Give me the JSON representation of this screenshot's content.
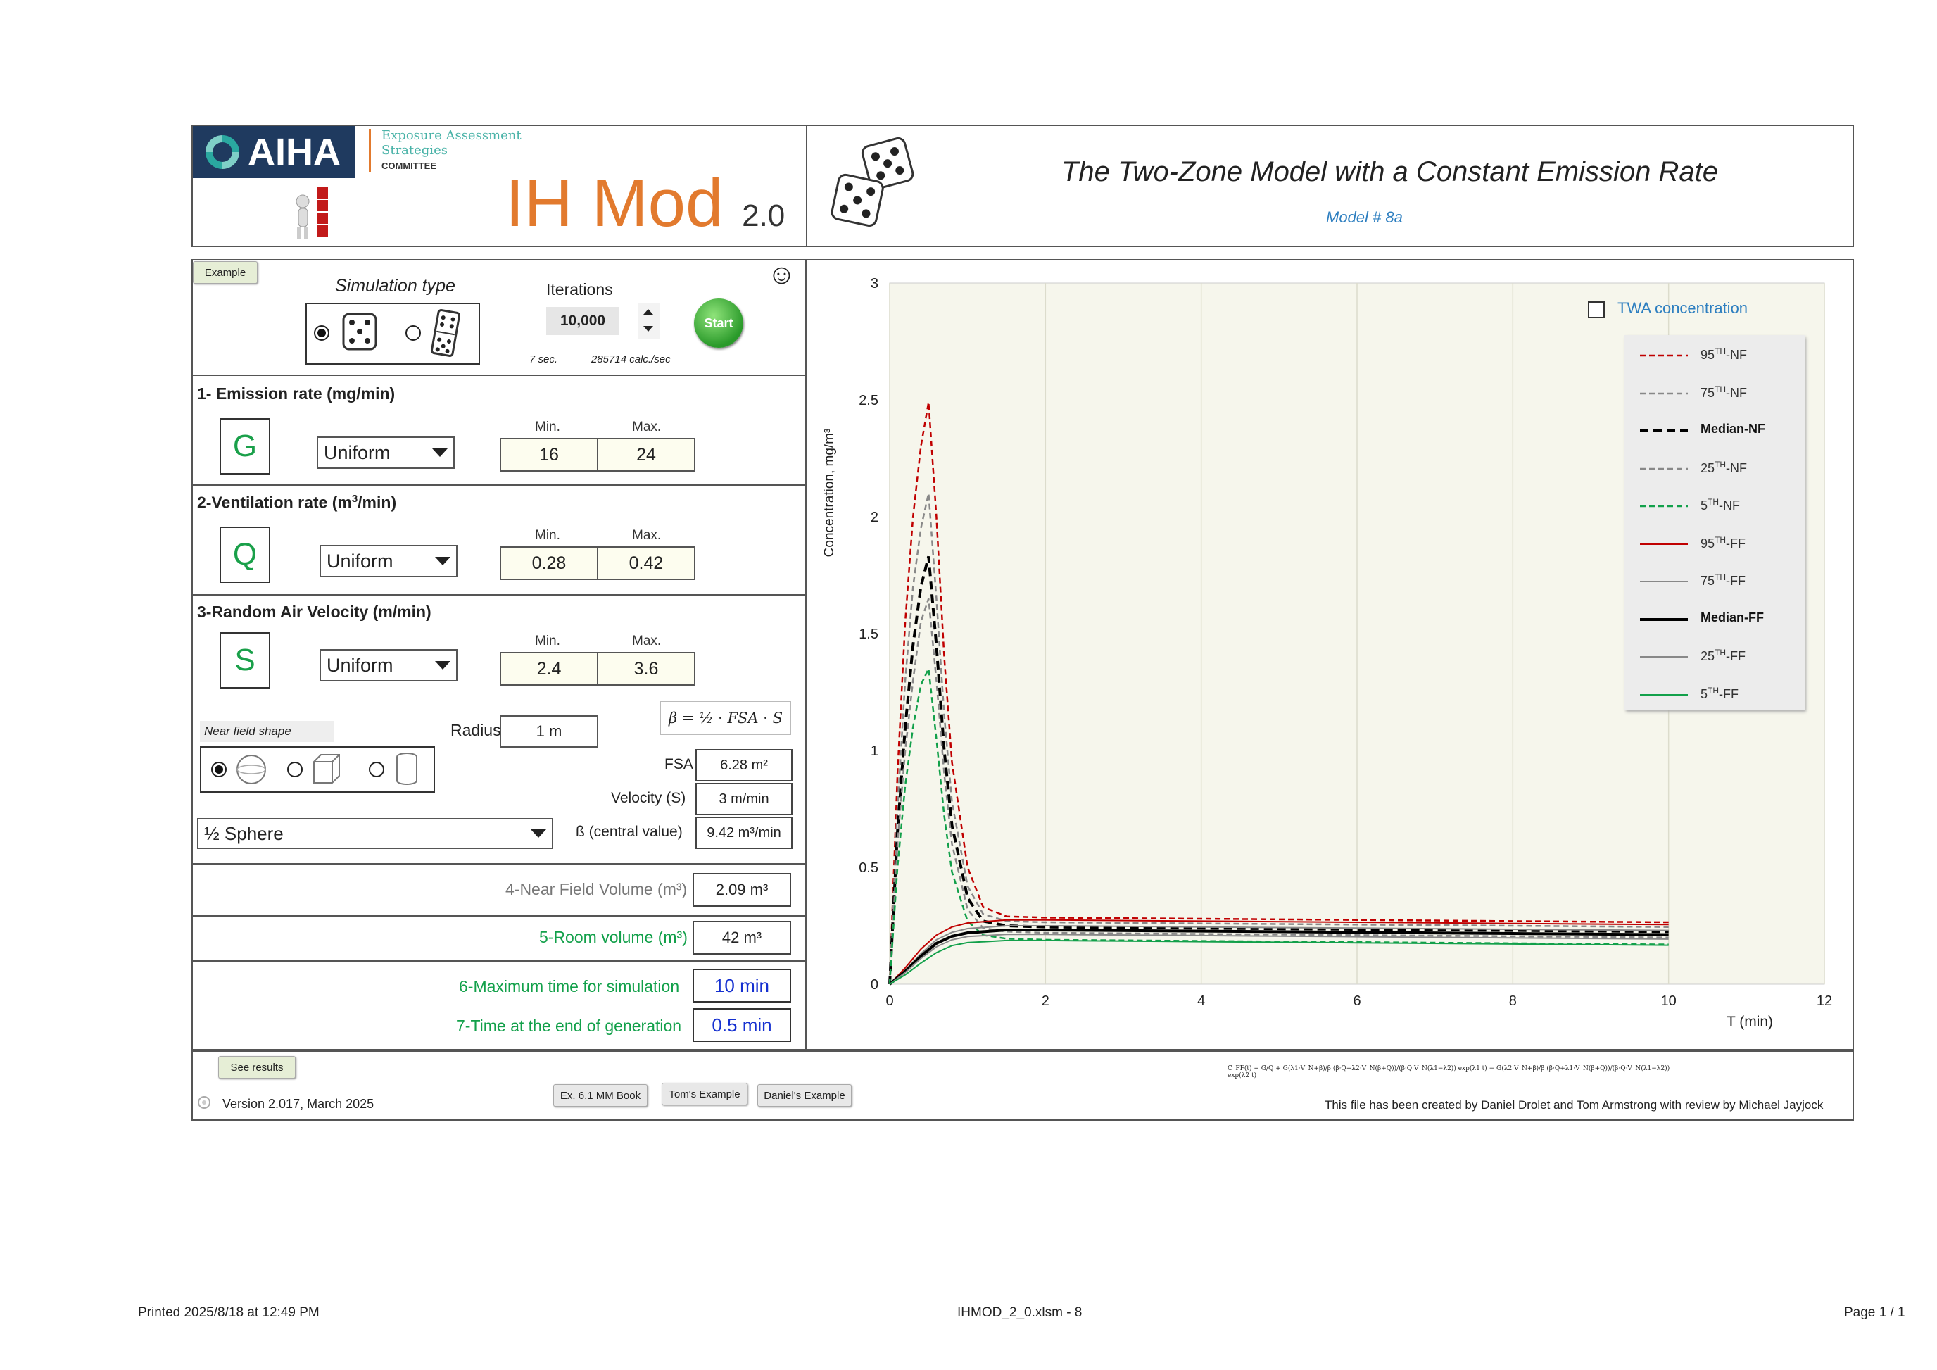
{
  "header": {
    "brand": "AIHA",
    "committee_line1": "Exposure Assessment",
    "committee_line2": "Strategies",
    "committee_line3": "COMMITTEE",
    "app_name": "IH Mod",
    "app_version": "2.0",
    "model_title": "The Two-Zone Model with a Constant Emission Rate",
    "model_number": "Model # 8a"
  },
  "controls": {
    "example_button": "Example",
    "smiley": "☺",
    "simulation_type_label": "Simulation type",
    "iterations_label": "Iterations",
    "iterations_value": "10,000",
    "start_button": "Start",
    "timing_seconds": "7 sec.",
    "timing_rate": "285714 calc./sec"
  },
  "sections": {
    "emission": {
      "title": "1- Emission rate (mg/min)",
      "letter": "G",
      "distribution": "Uniform",
      "min_label": "Min.",
      "max_label": "Max.",
      "min": "16",
      "max": "24"
    },
    "ventilation": {
      "title_pre": "2-Ventilation rate (m",
      "title_sup": "3",
      "title_post": "/min)",
      "letter": "Q",
      "distribution": "Uniform",
      "min_label": "Min.",
      "max_label": "Max.",
      "min": "0.28",
      "max": "0.42"
    },
    "air_velocity": {
      "title": "3-Random Air Velocity (m/min)",
      "letter": "S",
      "distribution": "Uniform",
      "min_label": "Min.",
      "max_label": "Max.",
      "min": "2.4",
      "max": "3.6"
    },
    "near_field": {
      "shape_label": "Near field shape",
      "radius_label": "Radius",
      "radius_value": "1 m",
      "formula": "β = ½ · FSA · S",
      "shape_dropdown": "½ Sphere",
      "fsa_label": "FSA",
      "fsa_value": "6.28 m²",
      "velocity_label": "Velocity (S)",
      "velocity_value": "3 m/min",
      "beta_label": "ß (central value)",
      "beta_value": "9.42 m³/min"
    },
    "volume": {
      "nf_label": "4-Near Field Volume (m³)",
      "nf_value": "2.09 m³",
      "room_label": "5-Room volume (m³)",
      "room_value": "42 m³"
    },
    "time": {
      "max_label": "6-Maximum time for simulation",
      "max_value": "10 min",
      "gen_label": "7-Time at the end of generation",
      "gen_value": "0.5 min"
    }
  },
  "footer": {
    "see_results": "See results",
    "version": "Version 2.017, March 2025",
    "btn_ex6": "Ex. 6,1 MM Book",
    "btn_tom": "Tom's Example",
    "btn_daniel": "Daniel's Example",
    "equation": "C_FF(t) = G/Q + G(λ1·V_N+β)/β (β·Q+λ2·V_N(β+Q))/(β·Q·V_N(λ1−λ2)) exp(λ1 t) − G(λ2·V_N+β)/β (β·Q+λ1·V_N(β+Q))/(β·Q·V_N(λ1−λ2)) exp(λ2 t)",
    "credits": "This file has been created by Daniel Drolet and Tom Armstrong with review by Michael Jayjock"
  },
  "print_footer": {
    "printed": "Printed 2025/8/18 at 12:49 PM",
    "file": "IHMOD_2_0.xlsm - 8",
    "page": "Page 1 / 1"
  },
  "chart_data": {
    "type": "line",
    "title": "",
    "xlabel": "T (min)",
    "ylabel": "Concentration, mg/m³",
    "xlim": [
      0,
      12
    ],
    "ylim": [
      0,
      3
    ],
    "xticks": [
      0,
      2,
      4,
      6,
      8,
      10,
      12
    ],
    "yticks": [
      0,
      0.5,
      1,
      1.5,
      2,
      2.5,
      3
    ],
    "legend_position": "top-right",
    "twa_checkbox_label": "TWA concentration",
    "twa_checked": false,
    "series": [
      {
        "name": "95TH-NF",
        "color": "#c00000",
        "dash": "dashed",
        "width": 2.5,
        "points": [
          [
            0,
            0
          ],
          [
            0.1,
            0.9
          ],
          [
            0.2,
            1.55
          ],
          [
            0.3,
            2.0
          ],
          [
            0.4,
            2.3
          ],
          [
            0.5,
            2.49
          ],
          [
            0.6,
            2.0
          ],
          [
            0.7,
            1.4
          ],
          [
            0.8,
            0.95
          ],
          [
            1.0,
            0.5
          ],
          [
            1.2,
            0.33
          ],
          [
            1.5,
            0.29
          ],
          [
            2,
            0.285
          ],
          [
            4,
            0.28
          ],
          [
            6,
            0.275
          ],
          [
            8,
            0.27
          ],
          [
            10,
            0.265
          ]
        ]
      },
      {
        "name": "75TH-NF",
        "color": "#888888",
        "dash": "dashed",
        "width": 2.5,
        "points": [
          [
            0,
            0
          ],
          [
            0.1,
            0.75
          ],
          [
            0.2,
            1.3
          ],
          [
            0.3,
            1.7
          ],
          [
            0.4,
            1.95
          ],
          [
            0.5,
            2.1
          ],
          [
            0.6,
            1.65
          ],
          [
            0.7,
            1.15
          ],
          [
            0.8,
            0.78
          ],
          [
            1.0,
            0.42
          ],
          [
            1.2,
            0.3
          ],
          [
            1.5,
            0.27
          ],
          [
            2,
            0.265
          ],
          [
            4,
            0.26
          ],
          [
            6,
            0.255
          ],
          [
            8,
            0.25
          ],
          [
            10,
            0.245
          ]
        ]
      },
      {
        "name": "Median-NF",
        "color": "#000000",
        "dash": "dashed",
        "width": 4,
        "points": [
          [
            0,
            0
          ],
          [
            0.1,
            0.65
          ],
          [
            0.2,
            1.1
          ],
          [
            0.3,
            1.45
          ],
          [
            0.4,
            1.7
          ],
          [
            0.5,
            1.83
          ],
          [
            0.6,
            1.45
          ],
          [
            0.7,
            1.0
          ],
          [
            0.8,
            0.68
          ],
          [
            1.0,
            0.37
          ],
          [
            1.2,
            0.27
          ],
          [
            1.5,
            0.25
          ],
          [
            2,
            0.245
          ],
          [
            4,
            0.24
          ],
          [
            6,
            0.235
          ],
          [
            8,
            0.23
          ],
          [
            10,
            0.225
          ]
        ]
      },
      {
        "name": "25TH-NF",
        "color": "#888888",
        "dash": "dashed",
        "width": 2.5,
        "points": [
          [
            0,
            0
          ],
          [
            0.1,
            0.6
          ],
          [
            0.2,
            1.0
          ],
          [
            0.3,
            1.3
          ],
          [
            0.4,
            1.55
          ],
          [
            0.5,
            1.65
          ],
          [
            0.6,
            1.3
          ],
          [
            0.7,
            0.9
          ],
          [
            0.8,
            0.6
          ],
          [
            1.0,
            0.32
          ],
          [
            1.2,
            0.24
          ],
          [
            1.5,
            0.225
          ],
          [
            2,
            0.22
          ],
          [
            4,
            0.215
          ],
          [
            6,
            0.21
          ],
          [
            8,
            0.205
          ],
          [
            10,
            0.2
          ]
        ]
      },
      {
        "name": "5TH-NF",
        "color": "#12a04a",
        "dash": "dashed",
        "width": 2.5,
        "points": [
          [
            0,
            0
          ],
          [
            0.1,
            0.5
          ],
          [
            0.2,
            0.85
          ],
          [
            0.3,
            1.1
          ],
          [
            0.4,
            1.28
          ],
          [
            0.5,
            1.35
          ],
          [
            0.6,
            1.05
          ],
          [
            0.7,
            0.72
          ],
          [
            0.8,
            0.48
          ],
          [
            1.0,
            0.27
          ],
          [
            1.2,
            0.21
          ],
          [
            1.5,
            0.195
          ],
          [
            2,
            0.19
          ],
          [
            4,
            0.185
          ],
          [
            6,
            0.18
          ],
          [
            8,
            0.175
          ],
          [
            10,
            0.17
          ]
        ]
      },
      {
        "name": "95TH-FF",
        "color": "#c00000",
        "dash": "solid",
        "width": 2,
        "points": [
          [
            0,
            0
          ],
          [
            0.2,
            0.07
          ],
          [
            0.4,
            0.15
          ],
          [
            0.6,
            0.21
          ],
          [
            0.8,
            0.245
          ],
          [
            1.0,
            0.262
          ],
          [
            1.5,
            0.275
          ],
          [
            2,
            0.275
          ],
          [
            4,
            0.27
          ],
          [
            6,
            0.265
          ],
          [
            8,
            0.26
          ],
          [
            10,
            0.255
          ]
        ]
      },
      {
        "name": "75TH-FF",
        "color": "#888888",
        "dash": "solid",
        "width": 2,
        "points": [
          [
            0,
            0
          ],
          [
            0.2,
            0.06
          ],
          [
            0.4,
            0.13
          ],
          [
            0.6,
            0.19
          ],
          [
            0.8,
            0.222
          ],
          [
            1.0,
            0.238
          ],
          [
            1.5,
            0.25
          ],
          [
            2,
            0.25
          ],
          [
            4,
            0.245
          ],
          [
            6,
            0.24
          ],
          [
            8,
            0.235
          ],
          [
            10,
            0.23
          ]
        ]
      },
      {
        "name": "Median-FF",
        "color": "#000000",
        "dash": "solid",
        "width": 4,
        "points": [
          [
            0,
            0
          ],
          [
            0.2,
            0.055
          ],
          [
            0.4,
            0.12
          ],
          [
            0.6,
            0.175
          ],
          [
            0.8,
            0.205
          ],
          [
            1.0,
            0.22
          ],
          [
            1.5,
            0.232
          ],
          [
            2,
            0.232
          ],
          [
            4,
            0.227
          ],
          [
            6,
            0.222
          ],
          [
            8,
            0.217
          ],
          [
            10,
            0.212
          ]
        ]
      },
      {
        "name": "25TH-FF",
        "color": "#888888",
        "dash": "solid",
        "width": 2,
        "points": [
          [
            0,
            0
          ],
          [
            0.2,
            0.05
          ],
          [
            0.4,
            0.11
          ],
          [
            0.6,
            0.16
          ],
          [
            0.8,
            0.19
          ],
          [
            1.0,
            0.204
          ],
          [
            1.5,
            0.213
          ],
          [
            2,
            0.213
          ],
          [
            4,
            0.208
          ],
          [
            6,
            0.203
          ],
          [
            8,
            0.198
          ],
          [
            10,
            0.193
          ]
        ]
      },
      {
        "name": "5TH-FF",
        "color": "#12a04a",
        "dash": "solid",
        "width": 2,
        "points": [
          [
            0,
            0
          ],
          [
            0.2,
            0.04
          ],
          [
            0.4,
            0.09
          ],
          [
            0.6,
            0.135
          ],
          [
            0.8,
            0.165
          ],
          [
            1.0,
            0.178
          ],
          [
            1.5,
            0.187
          ],
          [
            2,
            0.187
          ],
          [
            4,
            0.182
          ],
          [
            6,
            0.177
          ],
          [
            8,
            0.172
          ],
          [
            10,
            0.167
          ]
        ]
      }
    ],
    "legend_labels": [
      {
        "base": "95",
        "sup": "TH",
        "tail": "-NF"
      },
      {
        "base": "75",
        "sup": "TH",
        "tail": "-NF"
      },
      {
        "base": "Median-NF",
        "sup": "",
        "tail": ""
      },
      {
        "base": "25",
        "sup": "TH",
        "tail": "-NF"
      },
      {
        "base": "5",
        "sup": "TH",
        "tail": "-NF"
      },
      {
        "base": "95",
        "sup": "TH",
        "tail": "-FF"
      },
      {
        "base": "75",
        "sup": "TH",
        "tail": "-FF"
      },
      {
        "base": "Median-FF",
        "sup": "",
        "tail": ""
      },
      {
        "base": "25",
        "sup": "TH",
        "tail": "-FF"
      },
      {
        "base": "5",
        "sup": "TH",
        "tail": "-FF"
      }
    ]
  }
}
